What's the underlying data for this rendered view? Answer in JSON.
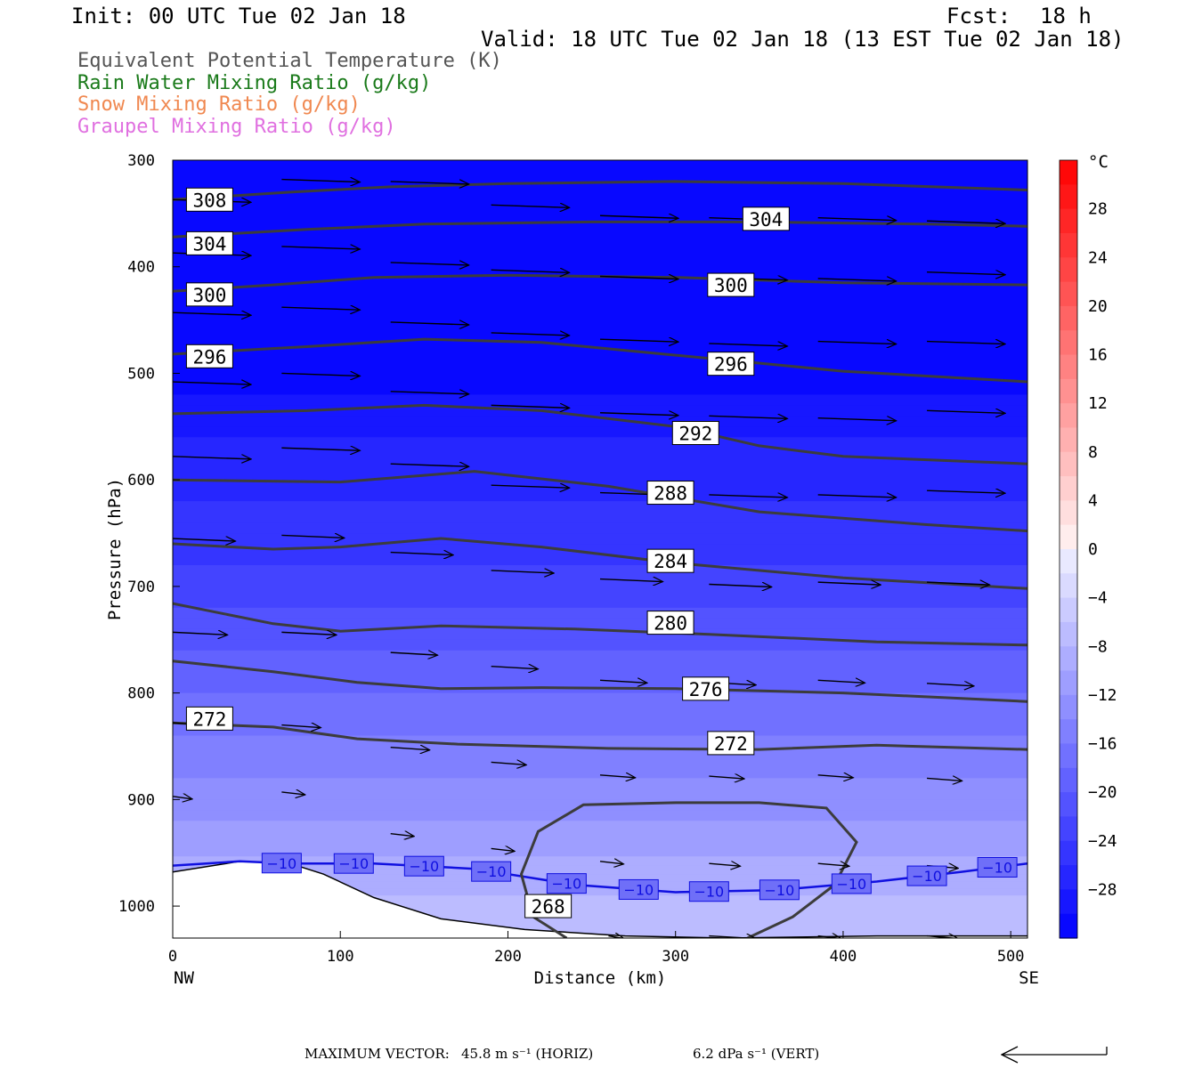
{
  "header": {
    "init": "Init: 00 UTC Tue 02 Jan 18",
    "fcst_label": "Fcst:",
    "fcst_value": "18 h",
    "valid": "Valid: 18 UTC Tue 02 Jan 18 (13 EST Tue 02 Jan 18)"
  },
  "legend": [
    {
      "label": "Equivalent Potential Temperature (K)",
      "color": "#555555"
    },
    {
      "label": "Rain Water Mixing Ratio (g/kg)",
      "color": "#1a7a1a"
    },
    {
      "label": "Snow Mixing Ratio (g/kg)",
      "color": "#f08850"
    },
    {
      "label": "Graupel Mixing Ratio (g/kg)",
      "color": "#e070e0"
    }
  ],
  "footer": {
    "max_vector_label": "MAXIMUM VECTOR:",
    "horiz": "45.8 m s⁻¹ (HORIZ)",
    "vert": "6.2 dPa s⁻¹ (VERT)"
  },
  "chart_data": {
    "type": "cross-section",
    "xlabel": "Distance (km)",
    "ylabel": "Pressure (hPa)",
    "x_end_labels": {
      "left": "NW",
      "right": "SE"
    },
    "xlim": [
      0,
      510
    ],
    "ylim": [
      300,
      1030
    ],
    "x_ticks": [
      0,
      100,
      200,
      300,
      400,
      500
    ],
    "y_ticks": [
      300,
      400,
      500,
      600,
      700,
      800,
      900,
      1000
    ],
    "colorbar": {
      "unit": "°C",
      "tick_labels": [
        "28",
        "24",
        "20",
        "16",
        "12",
        "8",
        "4",
        "0",
        "−4",
        "−8",
        "−12",
        "−16",
        "−20",
        "−24",
        "−28"
      ],
      "tick_values": [
        28,
        24,
        20,
        16,
        12,
        8,
        4,
        0,
        -4,
        -8,
        -12,
        -16,
        -20,
        -24,
        -28
      ],
      "range": [
        -32,
        32
      ],
      "step": 2
    },
    "theta_e_contours": [
      {
        "level": 308,
        "label": "308",
        "points": [
          [
            0,
            337
          ],
          [
            70,
            330
          ],
          [
            130,
            325
          ],
          [
            200,
            322
          ],
          [
            300,
            320
          ],
          [
            400,
            322
          ],
          [
            510,
            328
          ]
        ]
      },
      {
        "level": 304,
        "label": "304",
        "points": [
          [
            0,
            372
          ],
          [
            80,
            365
          ],
          [
            150,
            360
          ],
          [
            250,
            358
          ],
          [
            350,
            358
          ],
          [
            450,
            360
          ],
          [
            510,
            362
          ]
        ]
      },
      {
        "level": 300,
        "label": "300",
        "points": [
          [
            0,
            423
          ],
          [
            60,
            417
          ],
          [
            120,
            410
          ],
          [
            200,
            408
          ],
          [
            300,
            410
          ],
          [
            400,
            415
          ],
          [
            510,
            417
          ]
        ]
      },
      {
        "level": 296,
        "label": "296",
        "points": [
          [
            0,
            482
          ],
          [
            80,
            475
          ],
          [
            150,
            468
          ],
          [
            220,
            471
          ],
          [
            300,
            483
          ],
          [
            400,
            498
          ],
          [
            510,
            508
          ]
        ]
      },
      {
        "level": 292,
        "label": "292",
        "points": [
          [
            0,
            538
          ],
          [
            80,
            535
          ],
          [
            150,
            530
          ],
          [
            220,
            535
          ],
          [
            300,
            550
          ],
          [
            350,
            568
          ],
          [
            400,
            578
          ],
          [
            510,
            585
          ]
        ]
      },
      {
        "level": 288,
        "label": "288",
        "points": [
          [
            0,
            600
          ],
          [
            100,
            602
          ],
          [
            180,
            592
          ],
          [
            260,
            606
          ],
          [
            350,
            630
          ],
          [
            450,
            642
          ],
          [
            510,
            648
          ]
        ]
      },
      {
        "level": 284,
        "label": "284",
        "points": [
          [
            0,
            660
          ],
          [
            60,
            665
          ],
          [
            100,
            663
          ],
          [
            160,
            655
          ],
          [
            220,
            663
          ],
          [
            300,
            678
          ],
          [
            400,
            692
          ],
          [
            510,
            702
          ]
        ]
      },
      {
        "level": 280,
        "label": "280",
        "points": [
          [
            0,
            716
          ],
          [
            60,
            735
          ],
          [
            100,
            742
          ],
          [
            160,
            737
          ],
          [
            240,
            740
          ],
          [
            320,
            745
          ],
          [
            420,
            752
          ],
          [
            510,
            755
          ]
        ]
      },
      {
        "level": 276,
        "label": "276",
        "points": [
          [
            0,
            770
          ],
          [
            60,
            780
          ],
          [
            110,
            790
          ],
          [
            160,
            796
          ],
          [
            220,
            795
          ],
          [
            300,
            796
          ],
          [
            400,
            800
          ],
          [
            510,
            808
          ]
        ]
      },
      {
        "level": 272,
        "label": "272",
        "points": [
          [
            0,
            828
          ],
          [
            60,
            832
          ],
          [
            110,
            843
          ],
          [
            170,
            848
          ],
          [
            260,
            852
          ],
          [
            350,
            853
          ],
          [
            420,
            849
          ],
          [
            510,
            853
          ]
        ]
      }
    ],
    "theta_e_268": {
      "level": 268,
      "label": "268",
      "points": [
        [
          235,
          1030
        ],
        [
          215,
          1010
        ],
        [
          208,
          970
        ],
        [
          218,
          930
        ],
        [
          245,
          905
        ],
        [
          300,
          903
        ],
        [
          350,
          903
        ],
        [
          390,
          908
        ],
        [
          408,
          940
        ],
        [
          395,
          980
        ],
        [
          370,
          1010
        ],
        [
          343,
          1030
        ]
      ]
    },
    "minus10_isotherm": {
      "label": "−10",
      "points": [
        [
          0,
          962
        ],
        [
          40,
          958
        ],
        [
          70,
          960
        ],
        [
          120,
          960
        ],
        [
          180,
          965
        ],
        [
          240,
          980
        ],
        [
          300,
          987
        ],
        [
          360,
          985
        ],
        [
          420,
          977
        ],
        [
          470,
          968
        ],
        [
          510,
          960
        ]
      ]
    },
    "terrain_surface": [
      [
        0,
        968
      ],
      [
        40,
        958
      ],
      [
        70,
        960
      ],
      [
        90,
        970
      ],
      [
        120,
        992
      ],
      [
        160,
        1012
      ],
      [
        210,
        1022
      ],
      [
        270,
        1028
      ],
      [
        330,
        1030
      ],
      [
        420,
        1028
      ],
      [
        510,
        1028
      ]
    ],
    "wind_vectors": [
      {
        "x": 0,
        "p": 337,
        "u": 1
      },
      {
        "x": 65,
        "p": 318,
        "u": 1
      },
      {
        "x": 130,
        "p": 320,
        "u": 1
      },
      {
        "x": 190,
        "p": 342,
        "u": 1
      },
      {
        "x": 255,
        "p": 352,
        "u": 1
      },
      {
        "x": 320,
        "p": 354,
        "u": 1
      },
      {
        "x": 385,
        "p": 354,
        "u": 1
      },
      {
        "x": 450,
        "p": 357,
        "u": 1
      },
      {
        "x": 0,
        "p": 387,
        "u": 1
      },
      {
        "x": 65,
        "p": 381,
        "u": 1
      },
      {
        "x": 130,
        "p": 396,
        "u": 1
      },
      {
        "x": 190,
        "p": 403,
        "u": 1
      },
      {
        "x": 255,
        "p": 409,
        "u": 1
      },
      {
        "x": 320,
        "p": 410,
        "u": 1
      },
      {
        "x": 385,
        "p": 411,
        "u": 1
      },
      {
        "x": 450,
        "p": 405,
        "u": 1
      },
      {
        "x": 0,
        "p": 443,
        "u": 1
      },
      {
        "x": 65,
        "p": 438,
        "u": 1
      },
      {
        "x": 130,
        "p": 452,
        "u": 1
      },
      {
        "x": 190,
        "p": 462,
        "u": 1
      },
      {
        "x": 255,
        "p": 468,
        "u": 1
      },
      {
        "x": 320,
        "p": 472,
        "u": 1
      },
      {
        "x": 385,
        "p": 470,
        "u": 1
      },
      {
        "x": 450,
        "p": 470,
        "u": 1
      },
      {
        "x": 0,
        "p": 508,
        "u": 1
      },
      {
        "x": 65,
        "p": 500,
        "u": 1
      },
      {
        "x": 130,
        "p": 517,
        "u": 1
      },
      {
        "x": 190,
        "p": 530,
        "u": 1
      },
      {
        "x": 255,
        "p": 537,
        "u": 1
      },
      {
        "x": 320,
        "p": 540,
        "u": 1
      },
      {
        "x": 385,
        "p": 542,
        "u": 1
      },
      {
        "x": 450,
        "p": 535,
        "u": 1
      },
      {
        "x": 0,
        "p": 578,
        "u": 1
      },
      {
        "x": 65,
        "p": 570,
        "u": 1
      },
      {
        "x": 130,
        "p": 585,
        "u": 1
      },
      {
        "x": 190,
        "p": 605,
        "u": 1
      },
      {
        "x": 255,
        "p": 612,
        "u": 1
      },
      {
        "x": 320,
        "p": 614,
        "u": 1
      },
      {
        "x": 385,
        "p": 614,
        "u": 1
      },
      {
        "x": 450,
        "p": 610,
        "u": 1
      },
      {
        "x": 0,
        "p": 655,
        "u": 0.8
      },
      {
        "x": 65,
        "p": 652,
        "u": 0.8
      },
      {
        "x": 130,
        "p": 668,
        "u": 0.8
      },
      {
        "x": 190,
        "p": 685,
        "u": 0.8
      },
      {
        "x": 255,
        "p": 693,
        "u": 0.8
      },
      {
        "x": 320,
        "p": 698,
        "u": 0.8
      },
      {
        "x": 385,
        "p": 696,
        "u": 0.8
      },
      {
        "x": 450,
        "p": 696,
        "u": 0.8
      },
      {
        "x": 0,
        "p": 743,
        "u": 0.7
      },
      {
        "x": 65,
        "p": 743,
        "u": 0.7
      },
      {
        "x": 130,
        "p": 762,
        "u": 0.6
      },
      {
        "x": 190,
        "p": 775,
        "u": 0.6
      },
      {
        "x": 255,
        "p": 788,
        "u": 0.6
      },
      {
        "x": 320,
        "p": 790,
        "u": 0.6
      },
      {
        "x": 385,
        "p": 788,
        "u": 0.6
      },
      {
        "x": 450,
        "p": 791,
        "u": 0.6
      },
      {
        "x": 0,
        "p": 828,
        "u": 0.5
      },
      {
        "x": 65,
        "p": 830,
        "u": 0.5
      },
      {
        "x": 130,
        "p": 851,
        "u": 0.5
      },
      {
        "x": 190,
        "p": 865,
        "u": 0.45
      },
      {
        "x": 255,
        "p": 877,
        "u": 0.45
      },
      {
        "x": 320,
        "p": 878,
        "u": 0.45
      },
      {
        "x": 385,
        "p": 877,
        "u": 0.45
      },
      {
        "x": 450,
        "p": 880,
        "u": 0.45
      },
      {
        "x": 0,
        "p": 897,
        "u": 0.25
      },
      {
        "x": 65,
        "p": 893,
        "u": 0.3
      },
      {
        "x": 130,
        "p": 932,
        "u": 0.3
      },
      {
        "x": 190,
        "p": 946,
        "u": 0.3
      },
      {
        "x": 255,
        "p": 958,
        "u": 0.3
      },
      {
        "x": 320,
        "p": 960,
        "u": 0.4
      },
      {
        "x": 385,
        "p": 960,
        "u": 0.4
      },
      {
        "x": 450,
        "p": 962,
        "u": 0.4
      },
      {
        "x": 260,
        "p": 1028,
        "u": 0.2
      },
      {
        "x": 320,
        "p": 1028,
        "u": 0.6
      },
      {
        "x": 385,
        "p": 1028,
        "u": 0.3
      },
      {
        "x": 450,
        "p": 1028,
        "u": 0.4
      }
    ],
    "temperature_field": [
      {
        "p": 300,
        "t": -31
      },
      {
        "p": 500,
        "t": -31
      },
      {
        "p": 560,
        "t": -28
      },
      {
        "p": 620,
        "t": -26
      },
      {
        "p": 680,
        "t": -24
      },
      {
        "p": 740,
        "t": -21
      },
      {
        "p": 800,
        "t": -18
      },
      {
        "p": 860,
        "t": -15
      },
      {
        "p": 920,
        "t": -12
      },
      {
        "p": 970,
        "t": -9
      },
      {
        "p": 1010,
        "t": -7
      },
      {
        "p": 1030,
        "t": -6
      }
    ],
    "grid": false
  }
}
